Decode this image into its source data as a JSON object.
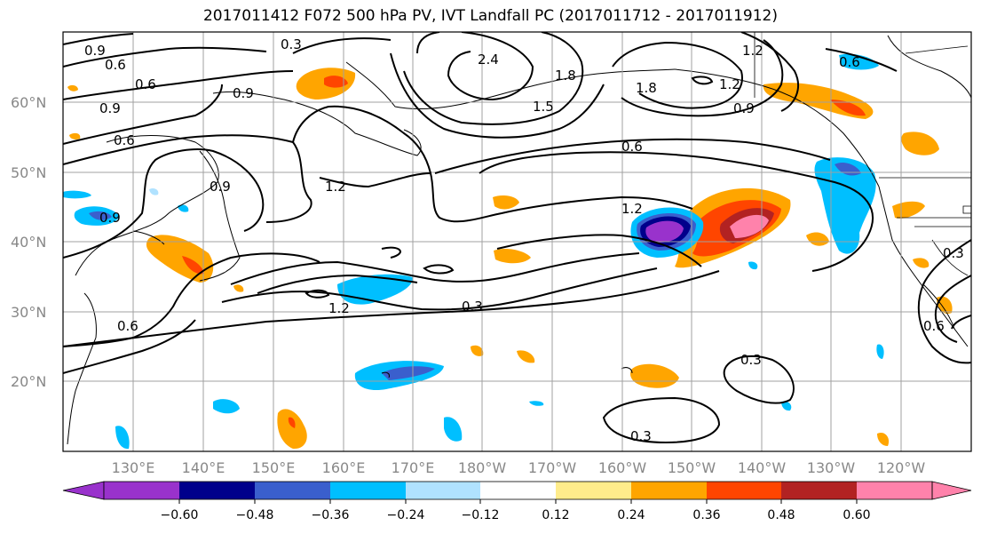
{
  "title": "2017011412 F072 500 hPa PV, IVT Landfall PC (2017011712 - 2017011912)",
  "map": {
    "lat_labels": [
      "60°N",
      "50°N",
      "40°N",
      "30°N",
      "20°N"
    ],
    "lon_labels": [
      "130°E",
      "140°E",
      "150°E",
      "160°E",
      "170°E",
      "180°W",
      "170°W",
      "160°W",
      "150°W",
      "140°W",
      "130°W",
      "120°W"
    ],
    "contour_labels": [
      "0.9",
      "0.6",
      "0.6",
      "0.9",
      "0.9",
      "0.6",
      "0.3",
      "2.4",
      "1.8",
      "1.5",
      "1.8",
      "1.2",
      "1.2",
      "0.6",
      "0.9",
      "0.6",
      "1.2",
      "0.9",
      "1.2",
      "1.2",
      "0.3",
      "0.6",
      "0.3",
      "0.3",
      "0.3",
      "0.6",
      "0.9"
    ]
  },
  "colorbar": {
    "colors": [
      "#9932cc",
      "#00008b",
      "#3a5fcd",
      "#00bfff",
      "#b0e2ff",
      "#ffffff",
      "#ffec8b",
      "#ffa500",
      "#ff4500",
      "#b22222",
      "#ff82ab"
    ],
    "tick_labels": [
      "−0.60",
      "−0.48",
      "−0.36",
      "−0.24",
      "−0.12",
      "0.12",
      "0.24",
      "0.36",
      "0.48",
      "0.60"
    ]
  }
}
